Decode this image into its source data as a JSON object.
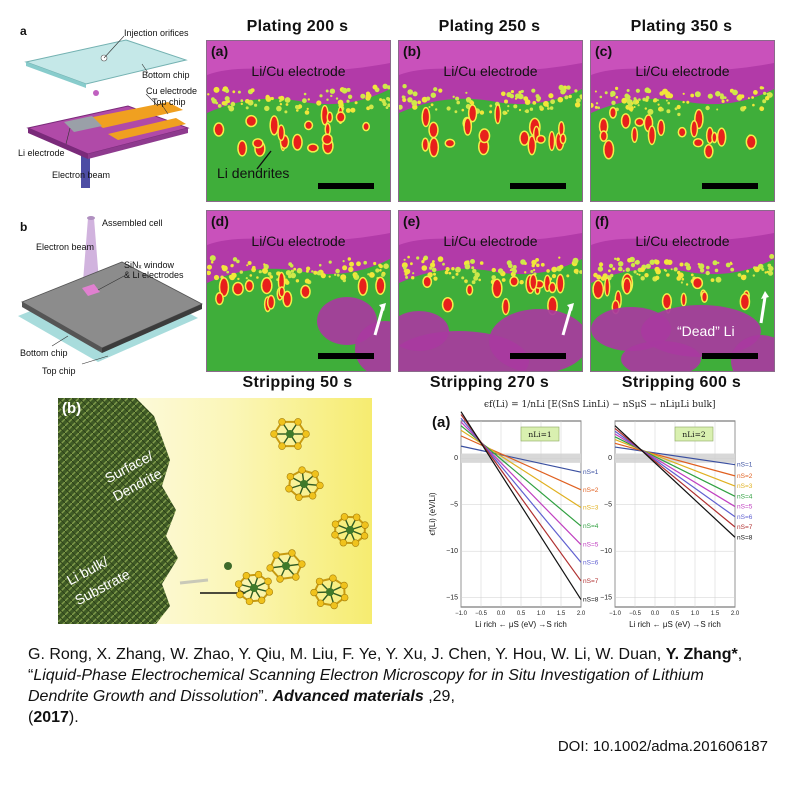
{
  "schematic_a": {
    "letter": "a",
    "labels": {
      "injection": "Injection orifices",
      "bottom_chip": "Bottom chip",
      "cu_electrode": "Cu electrode",
      "top_chip": "Top chip",
      "li_electrode": "Li electrode",
      "electron_beam": "Electron beam"
    }
  },
  "schematic_b": {
    "letter": "b",
    "labels": {
      "assembled": "Assembled cell",
      "electron_beam": "Electron beam",
      "window": "SiNₓ window",
      "window2": "& Li electrodes",
      "bottom_chip": "Bottom chip",
      "top_chip": "Top chip"
    }
  },
  "micrographs": {
    "top_titles": [
      "Plating 200 s",
      "Plating 250 s",
      "Plating 350 s"
    ],
    "bottom_titles": [
      "Stripping 50 s",
      "Stripping 270 s",
      "Stripping 600 s"
    ],
    "panels": [
      {
        "letter": "(a)",
        "electrode": "Li/Cu electrode"
      },
      {
        "letter": "(b)",
        "electrode": "Li/Cu electrode"
      },
      {
        "letter": "(c)",
        "electrode": "Li/Cu electrode"
      },
      {
        "letter": "(d)",
        "electrode": "Li/Cu electrode"
      },
      {
        "letter": "(e)",
        "electrode": "Li/Cu electrode"
      },
      {
        "letter": "(f)",
        "electrode": "Li/Cu electrode"
      }
    ],
    "dendrite_label": "Li dendrites",
    "dead_li_label": "“Dead” Li"
  },
  "render": {
    "letter": "(b)",
    "surface": "Surface/",
    "dendrite": "Dendrite",
    "bulk": "Li bulk/",
    "substrate": "Substrate"
  },
  "chart_header": {
    "letter": "(a)",
    "formula": "ϵf(Li) = 1/nLi [E(SnS LinLi) − nSμS − nLiμLi bulk]"
  },
  "chart_data": [
    {
      "type": "line",
      "title": "nLi=1",
      "ylabel": "ϵf(Li) (eV/Li)",
      "xlabel": "Li rich ←  μS (eV)  →S rich",
      "xlim": [
        -1.0,
        2.0
      ],
      "ylim": [
        -16,
        4
      ],
      "xticks": [
        "−1.0",
        "−0.5",
        "0.0",
        "0.5",
        "1.0",
        "1.5",
        "2.0"
      ],
      "yticks": [
        "0",
        "−5",
        "−10",
        "−15"
      ],
      "series": [
        {
          "name": "nS=1",
          "color": "#3a4fa0",
          "x": [
            -1.0,
            2.0
          ],
          "y": [
            1.3,
            -1.5
          ]
        },
        {
          "name": "nS=2",
          "color": "#e06020",
          "x": [
            -1.0,
            2.0
          ],
          "y": [
            2.4,
            -3.4
          ]
        },
        {
          "name": "nS=3",
          "color": "#e0b020",
          "x": [
            -1.0,
            2.0
          ],
          "y": [
            3.0,
            -5.3
          ]
        },
        {
          "name": "nS=4",
          "color": "#30a040",
          "x": [
            -1.0,
            2.0
          ],
          "y": [
            3.5,
            -7.3
          ]
        },
        {
          "name": "nS=5",
          "color": "#c040c0",
          "x": [
            -1.0,
            2.0
          ],
          "y": [
            3.9,
            -9.3
          ]
        },
        {
          "name": "nS=6",
          "color": "#6060d0",
          "x": [
            -1.0,
            2.0
          ],
          "y": [
            4.3,
            -11.2
          ]
        },
        {
          "name": "nS=7",
          "color": "#b03030",
          "x": [
            -1.0,
            2.0
          ],
          "y": [
            4.7,
            -13.2
          ]
        },
        {
          "name": "nS=8",
          "color": "#111111",
          "x": [
            -1.0,
            2.0
          ],
          "y": [
            5.0,
            -15.2
          ]
        }
      ]
    },
    {
      "type": "line",
      "title": "nLi=2",
      "xlabel": "Li rich ←  μS (eV)  →S rich",
      "xlim": [
        -1.0,
        2.0
      ],
      "ylim": [
        -16,
        4
      ],
      "xticks": [
        "−1.0",
        "−0.5",
        "0.0",
        "0.5",
        "1.0",
        "1.5",
        "2.0"
      ],
      "yticks": [
        "0",
        "−5",
        "−10",
        "−15"
      ],
      "series": [
        {
          "name": "nS=1",
          "color": "#3a4fa0",
          "x": [
            -1.0,
            2.0
          ],
          "y": [
            1.2,
            -0.7
          ]
        },
        {
          "name": "nS=2",
          "color": "#e06020",
          "x": [
            -1.0,
            2.0
          ],
          "y": [
            1.6,
            -1.9
          ]
        },
        {
          "name": "nS=3",
          "color": "#e0b020",
          "x": [
            -1.0,
            2.0
          ],
          "y": [
            2.0,
            -3.0
          ]
        },
        {
          "name": "nS=4",
          "color": "#30a040",
          "x": [
            -1.0,
            2.0
          ],
          "y": [
            2.3,
            -4.1
          ]
        },
        {
          "name": "nS=5",
          "color": "#c040c0",
          "x": [
            -1.0,
            2.0
          ],
          "y": [
            2.6,
            -5.2
          ]
        },
        {
          "name": "nS=6",
          "color": "#6060d0",
          "x": [
            -1.0,
            2.0
          ],
          "y": [
            2.9,
            -6.3
          ]
        },
        {
          "name": "nS=7",
          "color": "#b03030",
          "x": [
            -1.0,
            2.0
          ],
          "y": [
            3.2,
            -7.4
          ]
        },
        {
          "name": "nS=8",
          "color": "#111111",
          "x": [
            -1.0,
            2.0
          ],
          "y": [
            3.5,
            -8.5
          ]
        }
      ]
    }
  ],
  "citation": {
    "authors": "G. Rong, X. Zhang, W. Zhao, Y. Qiu, M. Liu, F. Ye, Y. Xu, J. Chen, Y. Hou, W. Li, W. Duan,",
    "corresponding": "Y. Zhang*",
    "sep": ", “",
    "title": "Liquid-Phase Electrochemical Scanning Electron Microscopy for in Situ Investigation of Lithium Dendrite Growth and Dissolution",
    "after_title": "”. ",
    "journal": "Advanced materials",
    "volume": " ,29,",
    "year_open": "(",
    "year": "2017",
    "year_close": ").",
    "doi": "DOI: 10.1002/adma.201606187"
  }
}
